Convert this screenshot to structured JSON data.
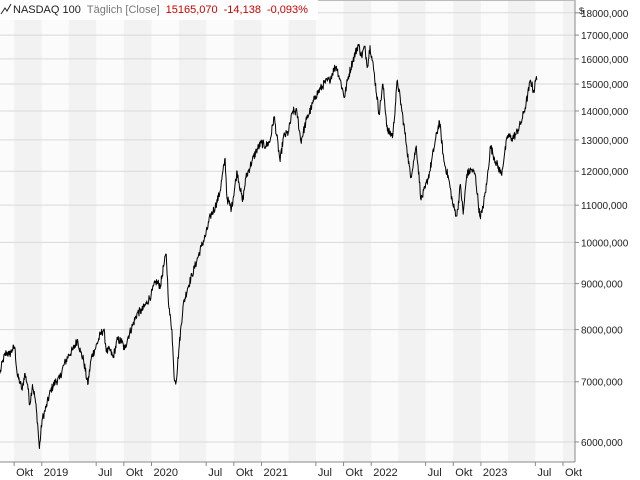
{
  "header": {
    "icon": "line-chart-icon",
    "title": "NASDAQ 100",
    "interval": "Täglich [Close]",
    "last": "15165,070",
    "change": "-14,138",
    "change_pct": "-0,093%"
  },
  "colors": {
    "line": "#000000",
    "band_odd": "#f2f2f2",
    "band_even": "#fbfbfb",
    "grid": "#d9d9d9",
    "negative": "#cc0000"
  },
  "chart_data": {
    "type": "line",
    "title": "NASDAQ 100",
    "currency_label": "$",
    "y_scale": "log",
    "ylim": [
      5700,
      18600
    ],
    "xlim": [
      "2018-08-15",
      "2023-11-10"
    ],
    "grid": true,
    "y_ticks": [
      6000,
      7000,
      8000,
      9000,
      10000,
      11000,
      12000,
      13000,
      14000,
      15000,
      16000,
      17000,
      18000
    ],
    "y_tick_labels": [
      "6000,000",
      "7000,000",
      "8000,000",
      "9000,000",
      "10000,000",
      "11000,000",
      "12000,000",
      "13000,000",
      "14000,000",
      "15000,000",
      "16000,000",
      "17000,000",
      "18000,000"
    ],
    "x_ticks": [
      {
        "date": "2018-10-01",
        "label": "Okt"
      },
      {
        "date": "2019-01-01",
        "label": "2019"
      },
      {
        "date": "2019-07-01",
        "label": "Jul"
      },
      {
        "date": "2019-10-01",
        "label": "Okt"
      },
      {
        "date": "2020-01-01",
        "label": "2020"
      },
      {
        "date": "2020-07-01",
        "label": "Jul"
      },
      {
        "date": "2020-10-01",
        "label": "Okt"
      },
      {
        "date": "2021-01-01",
        "label": "2021"
      },
      {
        "date": "2021-07-01",
        "label": "Jul"
      },
      {
        "date": "2021-10-01",
        "label": "Okt"
      },
      {
        "date": "2022-01-01",
        "label": "2022"
      },
      {
        "date": "2022-07-01",
        "label": "Jul"
      },
      {
        "date": "2022-10-01",
        "label": "Okt"
      },
      {
        "date": "2023-01-01",
        "label": "2023"
      },
      {
        "date": "2023-07-01",
        "label": "Jul"
      },
      {
        "date": "2023-10-01",
        "label": "Okt"
      }
    ],
    "bands": [
      [
        "2018-10-01",
        "2019-01-01"
      ],
      [
        "2019-04-01",
        "2019-07-01"
      ],
      [
        "2019-10-01",
        "2020-01-01"
      ],
      [
        "2020-04-01",
        "2020-07-01"
      ],
      [
        "2020-10-01",
        "2021-01-01"
      ],
      [
        "2021-04-01",
        "2021-07-01"
      ],
      [
        "2021-10-01",
        "2022-01-01"
      ],
      [
        "2022-04-01",
        "2022-07-01"
      ],
      [
        "2022-10-01",
        "2023-01-01"
      ],
      [
        "2023-04-01",
        "2023-07-01"
      ],
      [
        "2023-10-01",
        "2023-11-10"
      ]
    ],
    "series": [
      {
        "values": [
          [
            "2018-08-15",
            7150
          ],
          [
            "2018-08-25",
            7400
          ],
          [
            "2018-09-05",
            7550
          ],
          [
            "2018-09-15",
            7500
          ],
          [
            "2018-09-25",
            7600
          ],
          [
            "2018-10-03",
            7650
          ],
          [
            "2018-10-12",
            7100
          ],
          [
            "2018-10-20",
            7000
          ],
          [
            "2018-10-28",
            6850
          ],
          [
            "2018-11-05",
            7150
          ],
          [
            "2018-11-15",
            6950
          ],
          [
            "2018-11-22",
            6600
          ],
          [
            "2018-12-01",
            6950
          ],
          [
            "2018-12-10",
            6700
          ],
          [
            "2018-12-18",
            6300
          ],
          [
            "2018-12-24",
            5900
          ],
          [
            "2019-01-02",
            6350
          ],
          [
            "2019-01-15",
            6550
          ],
          [
            "2019-01-31",
            6850
          ],
          [
            "2019-02-15",
            7000
          ],
          [
            "2019-03-01",
            7050
          ],
          [
            "2019-03-15",
            7300
          ],
          [
            "2019-04-01",
            7500
          ],
          [
            "2019-04-15",
            7600
          ],
          [
            "2019-04-30",
            7800
          ],
          [
            "2019-05-10",
            7550
          ],
          [
            "2019-05-20",
            7400
          ],
          [
            "2019-06-03",
            6950
          ],
          [
            "2019-06-15",
            7450
          ],
          [
            "2019-06-30",
            7650
          ],
          [
            "2019-07-15",
            7900
          ],
          [
            "2019-07-26",
            8000
          ],
          [
            "2019-08-05",
            7550
          ],
          [
            "2019-08-15",
            7600
          ],
          [
            "2019-08-26",
            7450
          ],
          [
            "2019-09-10",
            7800
          ],
          [
            "2019-09-25",
            7750
          ],
          [
            "2019-10-03",
            7600
          ],
          [
            "2019-10-15",
            7850
          ],
          [
            "2019-10-31",
            8100
          ],
          [
            "2019-11-15",
            8350
          ],
          [
            "2019-11-30",
            8400
          ],
          [
            "2019-12-15",
            8550
          ],
          [
            "2019-12-31",
            8750
          ],
          [
            "2020-01-15",
            9050
          ],
          [
            "2020-01-31",
            8950
          ],
          [
            "2020-02-10",
            9400
          ],
          [
            "2020-02-19",
            9700
          ],
          [
            "2020-02-28",
            8450
          ],
          [
            "2020-03-09",
            8000
          ],
          [
            "2020-03-16",
            7100
          ],
          [
            "2020-03-23",
            7000
          ],
          [
            "2020-04-01",
            7600
          ],
          [
            "2020-04-15",
            8500
          ],
          [
            "2020-04-30",
            8900
          ],
          [
            "2020-05-15",
            9200
          ],
          [
            "2020-05-31",
            9550
          ],
          [
            "2020-06-15",
            9900
          ],
          [
            "2020-06-30",
            10200
          ],
          [
            "2020-07-15",
            10700
          ],
          [
            "2020-07-31",
            10950
          ],
          [
            "2020-08-15",
            11350
          ],
          [
            "2020-09-02",
            12400
          ],
          [
            "2020-09-08",
            11200
          ],
          [
            "2020-09-23",
            10900
          ],
          [
            "2020-10-12",
            12000
          ],
          [
            "2020-10-30",
            11100
          ],
          [
            "2020-11-10",
            11800
          ],
          [
            "2020-11-30",
            12300
          ],
          [
            "2020-12-15",
            12650
          ],
          [
            "2020-12-31",
            12900
          ],
          [
            "2021-01-15",
            12800
          ],
          [
            "2021-01-29",
            12950
          ],
          [
            "2021-02-12",
            13800
          ],
          [
            "2021-03-04",
            12300
          ],
          [
            "2021-03-15",
            13100
          ],
          [
            "2021-03-31",
            13250
          ],
          [
            "2021-04-15",
            14000
          ],
          [
            "2021-04-29",
            13950
          ],
          [
            "2021-05-12",
            12950
          ],
          [
            "2021-05-31",
            13700
          ],
          [
            "2021-06-15",
            14100
          ],
          [
            "2021-06-30",
            14550
          ],
          [
            "2021-07-15",
            14800
          ],
          [
            "2021-07-31",
            15050
          ],
          [
            "2021-08-15",
            15150
          ],
          [
            "2021-08-31",
            15600
          ],
          [
            "2021-09-07",
            15700
          ],
          [
            "2021-09-20",
            15150
          ],
          [
            "2021-10-04",
            14500
          ],
          [
            "2021-10-15",
            15200
          ],
          [
            "2021-10-31",
            15900
          ],
          [
            "2021-11-19",
            16600
          ],
          [
            "2021-11-30",
            16100
          ],
          [
            "2021-12-10",
            16500
          ],
          [
            "2021-12-20",
            15700
          ],
          [
            "2021-12-28",
            16550
          ],
          [
            "2022-01-10",
            15500
          ],
          [
            "2022-01-27",
            13900
          ],
          [
            "2022-02-09",
            15000
          ],
          [
            "2022-02-24",
            13300
          ],
          [
            "2022-03-14",
            13150
          ],
          [
            "2022-03-29",
            15150
          ],
          [
            "2022-04-12",
            14100
          ],
          [
            "2022-04-29",
            12800
          ],
          [
            "2022-05-12",
            11800
          ],
          [
            "2022-05-31",
            12800
          ],
          [
            "2022-06-16",
            11150
          ],
          [
            "2022-06-30",
            11500
          ],
          [
            "2022-07-15",
            12000
          ],
          [
            "2022-08-01",
            12900
          ],
          [
            "2022-08-16",
            13650
          ],
          [
            "2022-08-31",
            12300
          ],
          [
            "2022-09-15",
            11800
          ],
          [
            "2022-09-30",
            11000
          ],
          [
            "2022-10-13",
            10700
          ],
          [
            "2022-10-25",
            11600
          ],
          [
            "2022-11-03",
            10750
          ],
          [
            "2022-11-15",
            11900
          ],
          [
            "2022-11-30",
            12050
          ],
          [
            "2022-12-13",
            11900
          ],
          [
            "2022-12-28",
            10700
          ],
          [
            "2023-01-05",
            10800
          ],
          [
            "2023-01-20",
            11600
          ],
          [
            "2023-02-02",
            12800
          ],
          [
            "2023-02-15",
            12400
          ],
          [
            "2023-03-10",
            11900
          ],
          [
            "2023-03-20",
            12500
          ],
          [
            "2023-03-31",
            13150
          ],
          [
            "2023-04-14",
            13050
          ],
          [
            "2023-04-28",
            13200
          ],
          [
            "2023-05-15",
            13600
          ],
          [
            "2023-05-31",
            14250
          ],
          [
            "2023-06-15",
            15150
          ],
          [
            "2023-06-26",
            14700
          ],
          [
            "2023-07-03",
            15200
          ],
          [
            "2023-07-06",
            15165
          ]
        ]
      }
    ]
  }
}
